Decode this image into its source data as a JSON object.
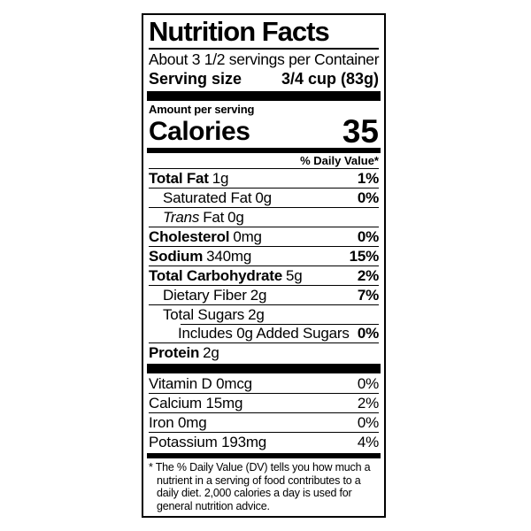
{
  "label": {
    "title": "Nutrition Facts",
    "servings_per_container": "About 3 1/2 servings per Container",
    "serving_size_label": "Serving size",
    "serving_size_value": "3/4 cup (83g)",
    "amount_per_serving": "Amount per serving",
    "calories_label": "Calories",
    "calories_value": "35",
    "daily_value_header": "% Daily Value*",
    "nutrients": [
      {
        "name": "Total Fat",
        "amount": "1g",
        "dv": "1%"
      },
      {
        "name": "Saturated Fat",
        "amount": "0g",
        "dv": "0%"
      },
      {
        "name": "Trans",
        "name_rest": "Fat",
        "amount": "0g",
        "dv": ""
      },
      {
        "name": "Cholesterol",
        "amount": "0mg",
        "dv": "0%"
      },
      {
        "name": "Sodium",
        "amount": "340mg",
        "dv": "15%"
      },
      {
        "name": "Total Carbohydrate",
        "amount": "5g",
        "dv": "2%"
      },
      {
        "name": "Dietary Fiber",
        "amount": "2g",
        "dv": "7%"
      },
      {
        "name": "Total Sugars",
        "amount": "2g",
        "dv": ""
      },
      {
        "name": "Includes 0g Added Sugars",
        "amount": "",
        "dv": "0%"
      },
      {
        "name": "Protein",
        "amount": "2g",
        "dv": ""
      }
    ],
    "micronutrients": [
      {
        "name": "Vitamin D 0mcg",
        "dv": "0%"
      },
      {
        "name": "Calcium 15mg",
        "dv": "2%"
      },
      {
        "name": "Iron 0mg",
        "dv": "0%"
      },
      {
        "name": "Potassium 193mg",
        "dv": "4%"
      }
    ],
    "footnote": "* The % Daily Value (DV) tells you how much a nutrient in a serving of food contributes to a daily diet. 2,000 calories a day is used for general nutrition advice."
  },
  "colors": {
    "text": "#000000",
    "background": "#ffffff"
  }
}
